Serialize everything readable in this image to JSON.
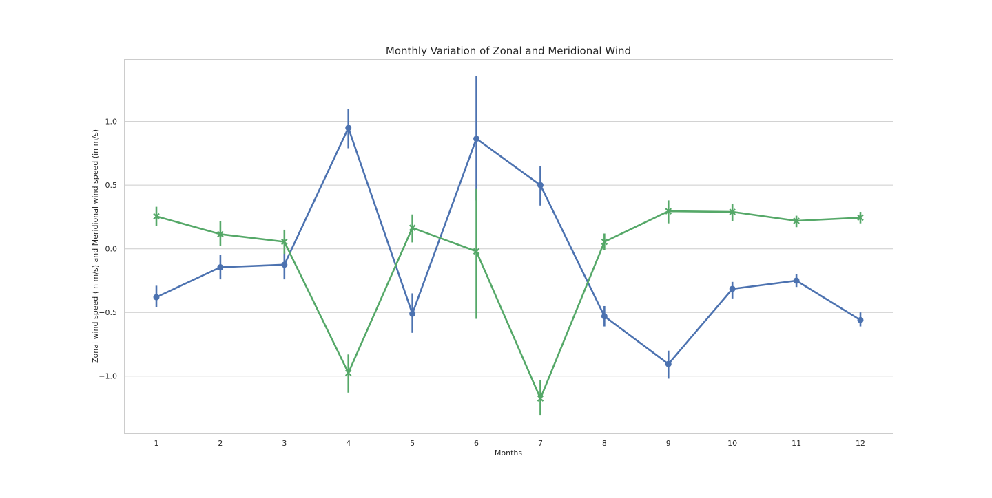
{
  "chart_data": {
    "type": "line",
    "title": "Monthly Variation of Zonal and Meridional Wind",
    "xlabel": "Months",
    "ylabel": "Zonal wind speed (in m/s) and Meridional wind speed (in m/s)",
    "categories": [
      "1",
      "2",
      "3",
      "4",
      "5",
      "6",
      "7",
      "8",
      "9",
      "10",
      "11",
      "12"
    ],
    "ylim": [
      -1.45,
      1.49
    ],
    "yticks": [
      -1.0,
      -0.5,
      0.0,
      0.5,
      1.0
    ],
    "ytick_labels": [
      "−1.0",
      "−0.5",
      "0.0",
      "0.5",
      "1.0"
    ],
    "grid": "horizontal",
    "legend": "none",
    "series": [
      {
        "color": "#4c72b0",
        "marker": "circle",
        "values": [
          -0.38,
          -0.145,
          -0.125,
          0.95,
          -0.51,
          0.865,
          0.5,
          -0.53,
          -0.905,
          -0.315,
          -0.25,
          -0.56
        ],
        "ci_low": [
          -0.46,
          -0.24,
          -0.24,
          0.79,
          -0.66,
          0.38,
          0.34,
          -0.61,
          -1.02,
          -0.39,
          -0.3,
          -0.61
        ],
        "ci_high": [
          -0.29,
          -0.05,
          -0.02,
          1.1,
          -0.35,
          1.36,
          0.65,
          -0.45,
          -0.8,
          -0.26,
          -0.2,
          -0.5
        ]
      },
      {
        "color": "#55a868",
        "marker": "x",
        "values": [
          0.255,
          0.115,
          0.055,
          -0.975,
          0.165,
          -0.02,
          -1.175,
          0.055,
          0.295,
          0.29,
          0.22,
          0.245
        ],
        "ci_low": [
          0.18,
          0.02,
          -0.04,
          -1.13,
          0.05,
          -0.55,
          -1.31,
          -0.01,
          0.2,
          0.22,
          0.17,
          0.2
        ],
        "ci_high": [
          0.33,
          0.22,
          0.15,
          -0.83,
          0.27,
          0.47,
          -1.03,
          0.12,
          0.38,
          0.35,
          0.26,
          0.29
        ]
      }
    ]
  }
}
